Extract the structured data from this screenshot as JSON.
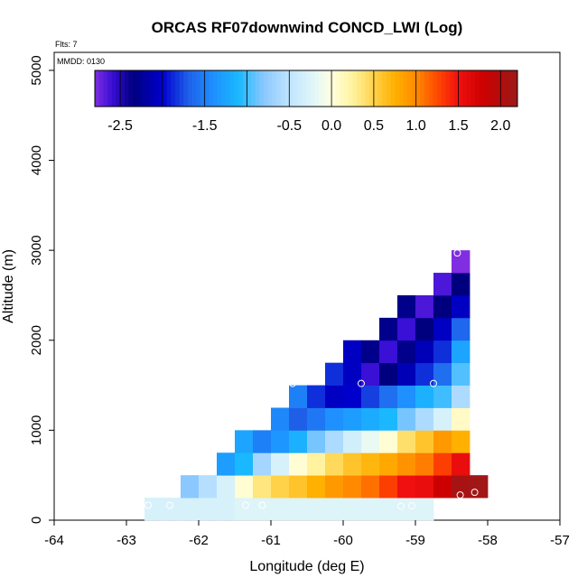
{
  "chart_data": {
    "type": "heatmap",
    "title": "ORCAS RF07downwind CONCD_LWI (Log)",
    "subtitle_flts": "Flts: 7",
    "annotation_mmdd": "MMDD: 0130",
    "xlabel": "Longitude (deg E)",
    "ylabel": "Altitude (m)",
    "xlim": [
      -64,
      -57
    ],
    "ylim": [
      0,
      5200
    ],
    "x_ticks": [
      -64,
      -63,
      -62,
      -61,
      -60,
      -59,
      -58,
      -57
    ],
    "x_tick_labels": [
      "-64",
      "-63",
      "-62",
      "-61",
      "-60",
      "-59",
      "-58",
      "-57"
    ],
    "y_ticks": [
      0,
      1000,
      2000,
      3000,
      4000,
      5000
    ],
    "y_tick_labels": [
      "0",
      "1000",
      "2000",
      "3000",
      "4000",
      "5000"
    ],
    "cell_width_deg": 0.25,
    "cell_height_m": 250,
    "colorbar": {
      "range": [
        -2.8,
        2.2
      ],
      "ticks": [
        -2.5,
        -1.5,
        -0.5,
        0.0,
        0.5,
        1.0,
        1.5,
        2.0
      ],
      "tick_labels": [
        "-2.5",
        "-1.5",
        "-0.5",
        "0.0",
        "0.5",
        "1.0",
        "1.5",
        "2.0"
      ],
      "color_stops": [
        {
          "v": -2.8,
          "c": "#7f2ee0"
        },
        {
          "v": -2.6,
          "c": "#3a0fd6"
        },
        {
          "v": -2.35,
          "c": "#00007f"
        },
        {
          "v": -2.0,
          "c": "#0000cd"
        },
        {
          "v": -1.7,
          "c": "#1f5fe8"
        },
        {
          "v": -1.4,
          "c": "#1e90ff"
        },
        {
          "v": -1.1,
          "c": "#1ab8ff"
        },
        {
          "v": -0.8,
          "c": "#8ac8ff"
        },
        {
          "v": -0.5,
          "c": "#bfe4ff"
        },
        {
          "v": -0.2,
          "c": "#e3f7f7"
        },
        {
          "v": 0.0,
          "c": "#ffffe0"
        },
        {
          "v": 0.25,
          "c": "#fff3a0"
        },
        {
          "v": 0.5,
          "c": "#ffd24a"
        },
        {
          "v": 0.75,
          "c": "#ffb000"
        },
        {
          "v": 1.0,
          "c": "#ff8a00"
        },
        {
          "v": 1.25,
          "c": "#ff4a00"
        },
        {
          "v": 1.5,
          "c": "#f01010"
        },
        {
          "v": 1.8,
          "c": "#cc0000"
        },
        {
          "v": 2.2,
          "c": "#9b1a1a"
        }
      ]
    },
    "cells": [
      {
        "lon": -62.75,
        "alt": 0,
        "v": -0.3
      },
      {
        "lon": -62.5,
        "alt": 0,
        "v": -0.3
      },
      {
        "lon": -62.25,
        "alt": 0,
        "v": -0.3
      },
      {
        "lon": -62.0,
        "alt": 0,
        "v": -0.3
      },
      {
        "lon": -61.75,
        "alt": 0,
        "v": -0.3
      },
      {
        "lon": -61.5,
        "alt": 0,
        "v": -0.25
      },
      {
        "lon": -61.25,
        "alt": 0,
        "v": -0.25
      },
      {
        "lon": -61.0,
        "alt": 0,
        "v": -0.25
      },
      {
        "lon": -60.75,
        "alt": 0,
        "v": -0.25
      },
      {
        "lon": -60.5,
        "alt": 0,
        "v": -0.25
      },
      {
        "lon": -60.25,
        "alt": 0,
        "v": -0.25
      },
      {
        "lon": -60.0,
        "alt": 0,
        "v": -0.25
      },
      {
        "lon": -59.75,
        "alt": 0,
        "v": -0.25
      },
      {
        "lon": -59.5,
        "alt": 0,
        "v": -0.25
      },
      {
        "lon": -59.25,
        "alt": 0,
        "v": -0.25
      },
      {
        "lon": -59.0,
        "alt": 0,
        "v": -0.25
      },
      {
        "lon": -62.25,
        "alt": 250,
        "v": -0.8
      },
      {
        "lon": -62.0,
        "alt": 250,
        "v": -0.55
      },
      {
        "lon": -61.75,
        "alt": 250,
        "v": -0.3
      },
      {
        "lon": -61.5,
        "alt": 250,
        "v": 0.05
      },
      {
        "lon": -61.25,
        "alt": 250,
        "v": 0.35
      },
      {
        "lon": -61.0,
        "alt": 250,
        "v": 0.5
      },
      {
        "lon": -60.75,
        "alt": 250,
        "v": 0.6
      },
      {
        "lon": -60.5,
        "alt": 250,
        "v": 0.75
      },
      {
        "lon": -60.25,
        "alt": 250,
        "v": 0.9
      },
      {
        "lon": -60.0,
        "alt": 250,
        "v": 1.0
      },
      {
        "lon": -59.75,
        "alt": 250,
        "v": 1.1
      },
      {
        "lon": -59.5,
        "alt": 250,
        "v": 1.3
      },
      {
        "lon": -59.25,
        "alt": 250,
        "v": 1.5
      },
      {
        "lon": -59.0,
        "alt": 250,
        "v": 1.55
      },
      {
        "lon": -58.75,
        "alt": 250,
        "v": 1.8
      },
      {
        "lon": -58.5,
        "alt": 250,
        "v": 2.1
      },
      {
        "lon": -58.25,
        "alt": 250,
        "v": 2.15
      },
      {
        "lon": -61.75,
        "alt": 500,
        "v": -1.3
      },
      {
        "lon": -61.5,
        "alt": 500,
        "v": -1.1
      },
      {
        "lon": -61.25,
        "alt": 500,
        "v": -0.65
      },
      {
        "lon": -61.0,
        "alt": 500,
        "v": -0.3
      },
      {
        "lon": -60.75,
        "alt": 500,
        "v": 0.05
      },
      {
        "lon": -60.5,
        "alt": 500,
        "v": 0.25
      },
      {
        "lon": -60.25,
        "alt": 500,
        "v": 0.45
      },
      {
        "lon": -60.0,
        "alt": 500,
        "v": 0.6
      },
      {
        "lon": -59.75,
        "alt": 500,
        "v": 0.7
      },
      {
        "lon": -59.5,
        "alt": 500,
        "v": 0.8
      },
      {
        "lon": -59.25,
        "alt": 500,
        "v": 0.95
      },
      {
        "lon": -59.0,
        "alt": 500,
        "v": 1.05
      },
      {
        "lon": -58.75,
        "alt": 500,
        "v": 1.3
      },
      {
        "lon": -58.5,
        "alt": 500,
        "v": 1.55
      },
      {
        "lon": -61.5,
        "alt": 750,
        "v": -1.25
      },
      {
        "lon": -61.25,
        "alt": 750,
        "v": -1.5
      },
      {
        "lon": -61.0,
        "alt": 750,
        "v": -1.35
      },
      {
        "lon": -60.75,
        "alt": 750,
        "v": -1.15
      },
      {
        "lon": -60.5,
        "alt": 750,
        "v": -0.85
      },
      {
        "lon": -60.25,
        "alt": 750,
        "v": -0.6
      },
      {
        "lon": -60.0,
        "alt": 750,
        "v": -0.35
      },
      {
        "lon": -59.75,
        "alt": 750,
        "v": -0.15
      },
      {
        "lon": -59.5,
        "alt": 750,
        "v": 0.05
      },
      {
        "lon": -59.25,
        "alt": 750,
        "v": 0.4
      },
      {
        "lon": -59.0,
        "alt": 750,
        "v": 0.6
      },
      {
        "lon": -58.75,
        "alt": 750,
        "v": 0.9
      },
      {
        "lon": -58.5,
        "alt": 750,
        "v": 0.75
      },
      {
        "lon": -61.0,
        "alt": 1000,
        "v": -1.45
      },
      {
        "lon": -60.75,
        "alt": 1000,
        "v": -1.7
      },
      {
        "lon": -60.5,
        "alt": 1000,
        "v": -1.55
      },
      {
        "lon": -60.25,
        "alt": 1000,
        "v": -1.4
      },
      {
        "lon": -60.0,
        "alt": 1000,
        "v": -1.3
      },
      {
        "lon": -59.75,
        "alt": 1000,
        "v": -1.2
      },
      {
        "lon": -59.5,
        "alt": 1000,
        "v": -1.1
      },
      {
        "lon": -59.25,
        "alt": 1000,
        "v": -0.85
      },
      {
        "lon": -59.0,
        "alt": 1000,
        "v": -0.6
      },
      {
        "lon": -58.75,
        "alt": 1000,
        "v": -0.3
      },
      {
        "lon": -58.5,
        "alt": 1000,
        "v": 0.1
      },
      {
        "lon": -60.75,
        "alt": 1250,
        "v": -1.5
      },
      {
        "lon": -60.5,
        "alt": 1250,
        "v": -1.85
      },
      {
        "lon": -60.25,
        "alt": 1250,
        "v": -2.05
      },
      {
        "lon": -60.0,
        "alt": 1250,
        "v": -2.0
      },
      {
        "lon": -59.75,
        "alt": 1250,
        "v": -1.8
      },
      {
        "lon": -59.5,
        "alt": 1250,
        "v": -1.6
      },
      {
        "lon": -59.25,
        "alt": 1250,
        "v": -1.4
      },
      {
        "lon": -59.0,
        "alt": 1250,
        "v": -1.15
      },
      {
        "lon": -58.75,
        "alt": 1250,
        "v": -1.0
      },
      {
        "lon": -58.5,
        "alt": 1250,
        "v": -0.6
      },
      {
        "lon": -60.25,
        "alt": 1500,
        "v": -1.85
      },
      {
        "lon": -60.0,
        "alt": 1500,
        "v": -2.05
      },
      {
        "lon": -59.75,
        "alt": 1500,
        "v": -2.6
      },
      {
        "lon": -59.5,
        "alt": 1500,
        "v": -2.35
      },
      {
        "lon": -59.25,
        "alt": 1500,
        "v": -2.1
      },
      {
        "lon": -59.0,
        "alt": 1500,
        "v": -1.85
      },
      {
        "lon": -58.75,
        "alt": 1500,
        "v": -1.6
      },
      {
        "lon": -58.5,
        "alt": 1500,
        "v": -0.95
      },
      {
        "lon": -60.0,
        "alt": 1750,
        "v": -2.05
      },
      {
        "lon": -59.75,
        "alt": 1750,
        "v": -2.3
      },
      {
        "lon": -59.5,
        "alt": 1750,
        "v": -2.6
      },
      {
        "lon": -59.25,
        "alt": 1750,
        "v": -2.3
      },
      {
        "lon": -59.0,
        "alt": 1750,
        "v": -2.1
      },
      {
        "lon": -58.75,
        "alt": 1750,
        "v": -1.85
      },
      {
        "lon": -58.5,
        "alt": 1750,
        "v": -1.25
      },
      {
        "lon": -59.5,
        "alt": 2000,
        "v": -2.3
      },
      {
        "lon": -59.25,
        "alt": 2000,
        "v": -2.6
      },
      {
        "lon": -59.0,
        "alt": 2000,
        "v": -2.35
      },
      {
        "lon": -58.75,
        "alt": 2000,
        "v": -2.05
      },
      {
        "lon": -58.5,
        "alt": 2000,
        "v": -1.65
      },
      {
        "lon": -59.25,
        "alt": 2250,
        "v": -2.3
      },
      {
        "lon": -59.0,
        "alt": 2250,
        "v": -2.65
      },
      {
        "lon": -58.75,
        "alt": 2250,
        "v": -2.35
      },
      {
        "lon": -58.5,
        "alt": 2250,
        "v": -2.05
      },
      {
        "lon": -58.75,
        "alt": 2500,
        "v": -2.65
      },
      {
        "lon": -58.5,
        "alt": 2500,
        "v": -2.35
      },
      {
        "lon": -58.5,
        "alt": 2750,
        "v": -2.8
      }
    ],
    "flight_points": [
      {
        "lon": -62.7,
        "alt": 165
      },
      {
        "lon": -62.4,
        "alt": 165
      },
      {
        "lon": -61.35,
        "alt": 165
      },
      {
        "lon": -61.12,
        "alt": 165
      },
      {
        "lon": -59.2,
        "alt": 155
      },
      {
        "lon": -59.05,
        "alt": 160
      },
      {
        "lon": -60.7,
        "alt": 1520
      },
      {
        "lon": -59.75,
        "alt": 1520
      },
      {
        "lon": -58.75,
        "alt": 1520
      },
      {
        "lon": -58.42,
        "alt": 2970
      },
      {
        "lon": -58.38,
        "alt": 280
      },
      {
        "lon": -58.18,
        "alt": 310
      }
    ]
  }
}
